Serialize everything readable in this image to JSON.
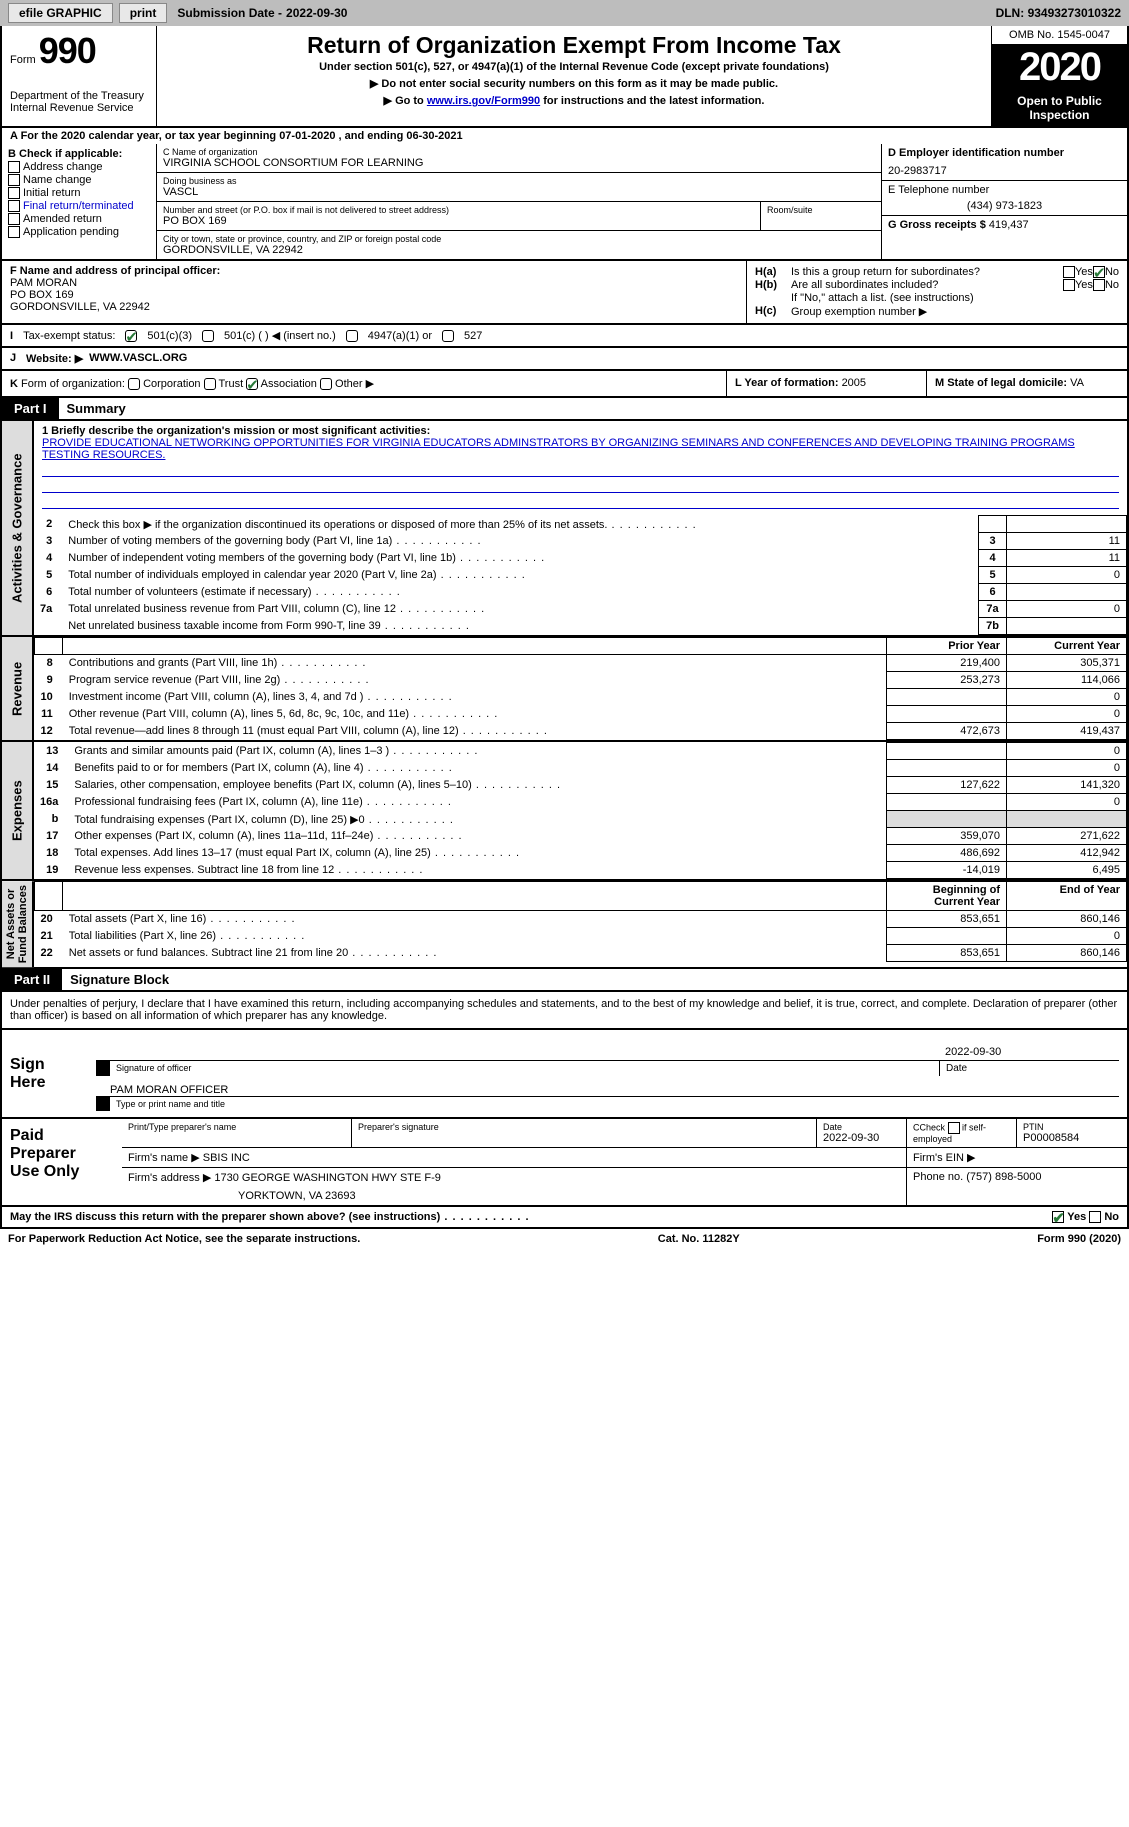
{
  "topbar": {
    "efile": "efile GRAPHIC",
    "print": "print",
    "subdate_label": "Submission Date - ",
    "subdate": "2022-09-30",
    "dln_label": "DLN: ",
    "dln": "93493273010322"
  },
  "header": {
    "form_prefix": "Form",
    "form_number": "990",
    "dept": "Department of the Treasury\nInternal Revenue Service",
    "title": "Return of Organization Exempt From Income Tax",
    "subtitle": "Under section 501(c), 527, or 4947(a)(1) of the Internal Revenue Code (except private foundations)",
    "instr1": "▶ Do not enter social security numbers on this form as it may be made public.",
    "instr2_pre": "▶ Go to ",
    "instr2_link": "www.irs.gov/Form990",
    "instr2_post": " for instructions and the latest information.",
    "omb": "OMB No. 1545-0047",
    "year": "2020",
    "open_pub": "Open to Public\nInspection"
  },
  "row_a": "A For the 2020 calendar year, or tax year beginning 07-01-2020    , and ending 06-30-2021",
  "section_b": {
    "header": "B Check if applicable:",
    "items": [
      "Address change",
      "Name change",
      "Initial return",
      "Final return/terminated",
      "Amended return",
      "Application pending"
    ]
  },
  "section_c": {
    "name_label": "C Name of organization",
    "name": "VIRGINIA SCHOOL CONSORTIUM FOR LEARNING",
    "dba_label": "Doing business as",
    "dba": "VASCL",
    "street_label": "Number and street (or P.O. box if mail is not delivered to street address)",
    "street": "PO BOX 169",
    "room_label": "Room/suite",
    "city_label": "City or town, state or province, country, and ZIP or foreign postal code",
    "city": "GORDONSVILLE, VA  22942"
  },
  "section_d": {
    "label": "D Employer identification number",
    "ein": "20-2983717"
  },
  "section_e": {
    "label": "E Telephone number",
    "phone": "(434) 973-1823"
  },
  "section_g": {
    "label": "G Gross receipts $ ",
    "amount": "419,437"
  },
  "section_f": {
    "label": "F Name and address of principal officer:",
    "name": "PAM MORAN",
    "addr1": "PO BOX 169",
    "addr2": "GORDONSVILLE, VA  22942"
  },
  "section_h": {
    "ha": "Is this a group return for subordinates?",
    "hb": "Are all subordinates included?",
    "hb_note": "If \"No,\" attach a list. (see instructions)",
    "hc": "Group exemption number ▶",
    "yes": "Yes",
    "no": "No"
  },
  "tax_status": {
    "label_i": "I",
    "label": "Tax-exempt status:",
    "c3": "501(c)(3)",
    "c": "501(c) (  ) ◀ (insert no.)",
    "a1": "4947(a)(1) or",
    "s527": "527"
  },
  "website": {
    "j": "J",
    "label": "Website: ▶",
    "url": "WWW.VASCL.ORG"
  },
  "k_org": {
    "k": "K",
    "label": "Form of organization:",
    "corp": "Corporation",
    "trust": "Trust",
    "assoc": "Association",
    "other": "Other ▶"
  },
  "l_year": {
    "label": "L Year of formation: ",
    "val": "2005"
  },
  "m_state": {
    "label": "M State of legal domicile: ",
    "val": "VA"
  },
  "part1": {
    "num": "Part I",
    "title": "Summary"
  },
  "mission": {
    "label": "1  Briefly describe the organization's mission or most significant activities:",
    "text": "PROVIDE EDUCATIONAL NETWORKING OPPORTUNITIES FOR VIRGINIA EDUCATORS ADMINSTRATORS BY ORGANIZING SEMINARS AND CONFERENCES AND DEVELOPING TRAINING PROGRAMS TESTING RESOURCES."
  },
  "gov_rows": [
    {
      "n": "2",
      "d": "Check this box ▶      if the organization discontinued its operations or disposed of more than 25% of its net assets."
    },
    {
      "n": "3",
      "d": "Number of voting members of the governing body (Part VI, line 1a)",
      "b": "3",
      "v": "11"
    },
    {
      "n": "4",
      "d": "Number of independent voting members of the governing body (Part VI, line 1b)",
      "b": "4",
      "v": "11"
    },
    {
      "n": "5",
      "d": "Total number of individuals employed in calendar year 2020 (Part V, line 2a)",
      "b": "5",
      "v": "0"
    },
    {
      "n": "6",
      "d": "Total number of volunteers (estimate if necessary)",
      "b": "6",
      "v": ""
    },
    {
      "n": "7a",
      "d": "Total unrelated business revenue from Part VIII, column (C), line 12",
      "b": "7a",
      "v": "0"
    },
    {
      "n": "",
      "d": "Net unrelated business taxable income from Form 990-T, line 39",
      "b": "7b",
      "v": ""
    }
  ],
  "fin_hdr": {
    "prior": "Prior Year",
    "curr": "Current Year"
  },
  "rev_rows": [
    {
      "n": "8",
      "d": "Contributions and grants (Part VIII, line 1h)",
      "p": "219,400",
      "c": "305,371"
    },
    {
      "n": "9",
      "d": "Program service revenue (Part VIII, line 2g)",
      "p": "253,273",
      "c": "114,066"
    },
    {
      "n": "10",
      "d": "Investment income (Part VIII, column (A), lines 3, 4, and 7d )",
      "p": "",
      "c": "0"
    },
    {
      "n": "11",
      "d": "Other revenue (Part VIII, column (A), lines 5, 6d, 8c, 9c, 10c, and 11e)",
      "p": "",
      "c": "0"
    },
    {
      "n": "12",
      "d": "Total revenue—add lines 8 through 11 (must equal Part VIII, column (A), line 12)",
      "p": "472,673",
      "c": "419,437"
    }
  ],
  "exp_rows": [
    {
      "n": "13",
      "d": "Grants and similar amounts paid (Part IX, column (A), lines 1–3 )",
      "p": "",
      "c": "0"
    },
    {
      "n": "14",
      "d": "Benefits paid to or for members (Part IX, column (A), line 4)",
      "p": "",
      "c": "0"
    },
    {
      "n": "15",
      "d": "Salaries, other compensation, employee benefits (Part IX, column (A), lines 5–10)",
      "p": "127,622",
      "c": "141,320"
    },
    {
      "n": "16a",
      "d": "Professional fundraising fees (Part IX, column (A), line 11e)",
      "p": "",
      "c": "0"
    },
    {
      "n": "b",
      "d": "Total fundraising expenses (Part IX, column (D), line 25) ▶0",
      "p": "SHADE",
      "c": "SHADE"
    },
    {
      "n": "17",
      "d": "Other expenses (Part IX, column (A), lines 11a–11d, 11f–24e)",
      "p": "359,070",
      "c": "271,622"
    },
    {
      "n": "18",
      "d": "Total expenses. Add lines 13–17 (must equal Part IX, column (A), line 25)",
      "p": "486,692",
      "c": "412,942"
    },
    {
      "n": "19",
      "d": "Revenue less expenses. Subtract line 18 from line 12",
      "p": "-14,019",
      "c": "6,495"
    }
  ],
  "na_hdr": {
    "beg": "Beginning of Current Year",
    "end": "End of Year"
  },
  "na_rows": [
    {
      "n": "20",
      "d": "Total assets (Part X, line 16)",
      "p": "853,651",
      "c": "860,146"
    },
    {
      "n": "21",
      "d": "Total liabilities (Part X, line 26)",
      "p": "",
      "c": "0"
    },
    {
      "n": "22",
      "d": "Net assets or fund balances. Subtract line 21 from line 20",
      "p": "853,651",
      "c": "860,146"
    }
  ],
  "part2": {
    "num": "Part II",
    "title": "Signature Block"
  },
  "penalties": "Under penalties of perjury, I declare that I have examined this return, including accompanying schedules and statements, and to the best of my knowledge and belief, it is true, correct, and complete. Declaration of preparer (other than officer) is based on all information of which preparer has any knowledge.",
  "sign": {
    "here": "Sign\nHere",
    "sig_officer": "Signature of officer",
    "date": "Date",
    "sig_date": "2022-09-30",
    "name": "PAM MORAN  OFFICER",
    "name_label": "Type or print name and title"
  },
  "prep": {
    "label": "Paid\nPreparer\nUse Only",
    "pt_name": "Print/Type preparer's name",
    "sig": "Preparer's signature",
    "date_l": "Date",
    "date": "2022-09-30",
    "check_l": "Check        if self-employed",
    "ptin_l": "PTIN",
    "ptin": "P00008584",
    "firm_l": "Firm's name    ▶",
    "firm": "SBIS INC",
    "ein_l": "Firm's EIN ▶",
    "addr_l": "Firm's address ▶",
    "addr": "1730 GEORGE WASHINGTON HWY STE F-9",
    "addr2": "YORKTOWN, VA  23693",
    "phone_l": "Phone no. ",
    "phone": "(757) 898-5000"
  },
  "discuss": "May the IRS discuss this return with the preparer shown above? (see instructions)",
  "pra": "For Paperwork Reduction Act Notice, see the separate instructions.",
  "cat": "Cat. No. 11282Y",
  "form_foot": "Form 990 (2020)",
  "vtabs": {
    "gov": "Activities & Governance",
    "rev": "Revenue",
    "exp": "Expenses",
    "na": "Net Assets or\nFund Balances"
  }
}
